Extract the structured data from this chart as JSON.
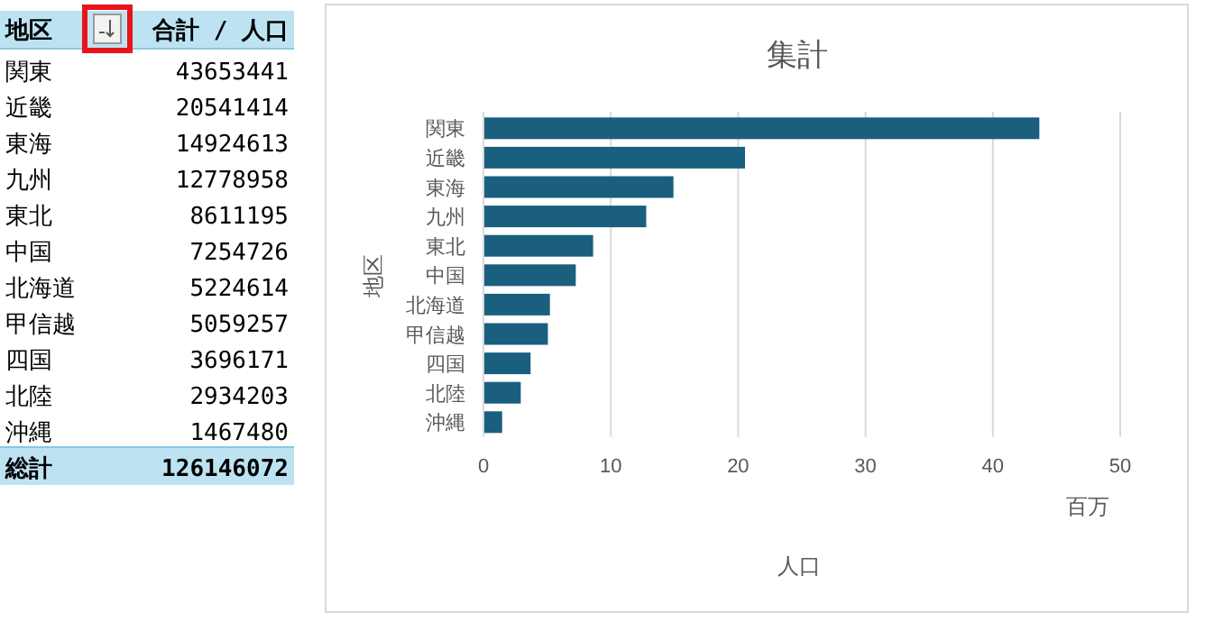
{
  "chart_data": [
    {
      "type": "other",
      "categories": [
        "関東",
        "近畿",
        "東海",
        "九州",
        "東北",
        "中国",
        "北海道",
        "甲信越",
        "四国",
        "北陸",
        "沖縄"
      ],
      "values": [
        43653441,
        20541414,
        14924613,
        12778958,
        8611195,
        7254726,
        5224614,
        5059257,
        3696171,
        2934203,
        1467480
      ],
      "data_labels": true,
      "annotations": [
        "地区",
        "合計 / 人口",
        "総計",
        "126146072"
      ]
    },
    {
      "type": "bar",
      "orientation": "horizontal",
      "title": "集計",
      "xlabel": "人口",
      "ylabel": "地区",
      "categories": [
        "関東",
        "近畿",
        "東海",
        "九州",
        "東北",
        "中国",
        "北海道",
        "甲信越",
        "四国",
        "北陸",
        "沖縄"
      ],
      "values": [
        43.65,
        20.54,
        14.92,
        12.78,
        8.61,
        7.25,
        5.22,
        5.06,
        3.7,
        2.93,
        1.47
      ],
      "color": "#1a5f7e",
      "xlim": [
        0,
        50
      ],
      "xticks": [
        0,
        10,
        20,
        30,
        40,
        50
      ],
      "grid": "x",
      "annotations": [
        "百万"
      ]
    }
  ]
}
